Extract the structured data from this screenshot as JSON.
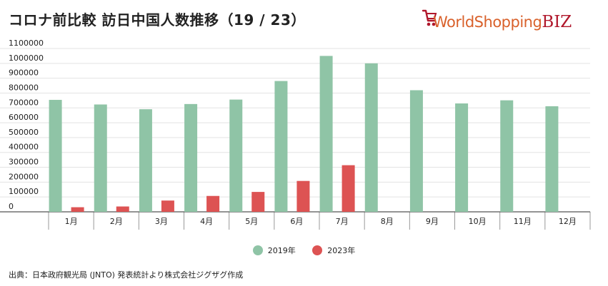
{
  "header": {
    "title": "コロナ前比較 訪日中国人数推移（19 / 23）"
  },
  "logo": {
    "text": "WorldShopping",
    "suffix": "BIZ"
  },
  "colors": {
    "series_2019": "#8fc4a6",
    "series_2023": "#dd5353",
    "grid": "#e3e3e3",
    "axis": "#555555"
  },
  "chart_data": {
    "type": "bar",
    "categories": [
      "1月",
      "2月",
      "3月",
      "4月",
      "5月",
      "6月",
      "7月",
      "8月",
      "9月",
      "10月",
      "11月",
      "12月"
    ],
    "series": [
      {
        "name": "2019年",
        "values": [
          754000,
          723000,
          691000,
          726000,
          756000,
          881000,
          1050000,
          1000000,
          819000,
          730000,
          751000,
          711000
        ]
      },
      {
        "name": "2023年",
        "values": [
          31000,
          36000,
          76000,
          107000,
          134000,
          208000,
          314000,
          null,
          null,
          null,
          null,
          null
        ]
      }
    ],
    "yticks": [
      0,
      100000,
      200000,
      300000,
      400000,
      500000,
      600000,
      700000,
      800000,
      900000,
      1000000,
      1100000
    ],
    "ylim": [
      0,
      1100000
    ],
    "grid": true,
    "legend": "bottom"
  },
  "footer": {
    "source": "出典：日本政府観光局 (JNTO) 発表統計より株式会社ジグザグ作成"
  }
}
